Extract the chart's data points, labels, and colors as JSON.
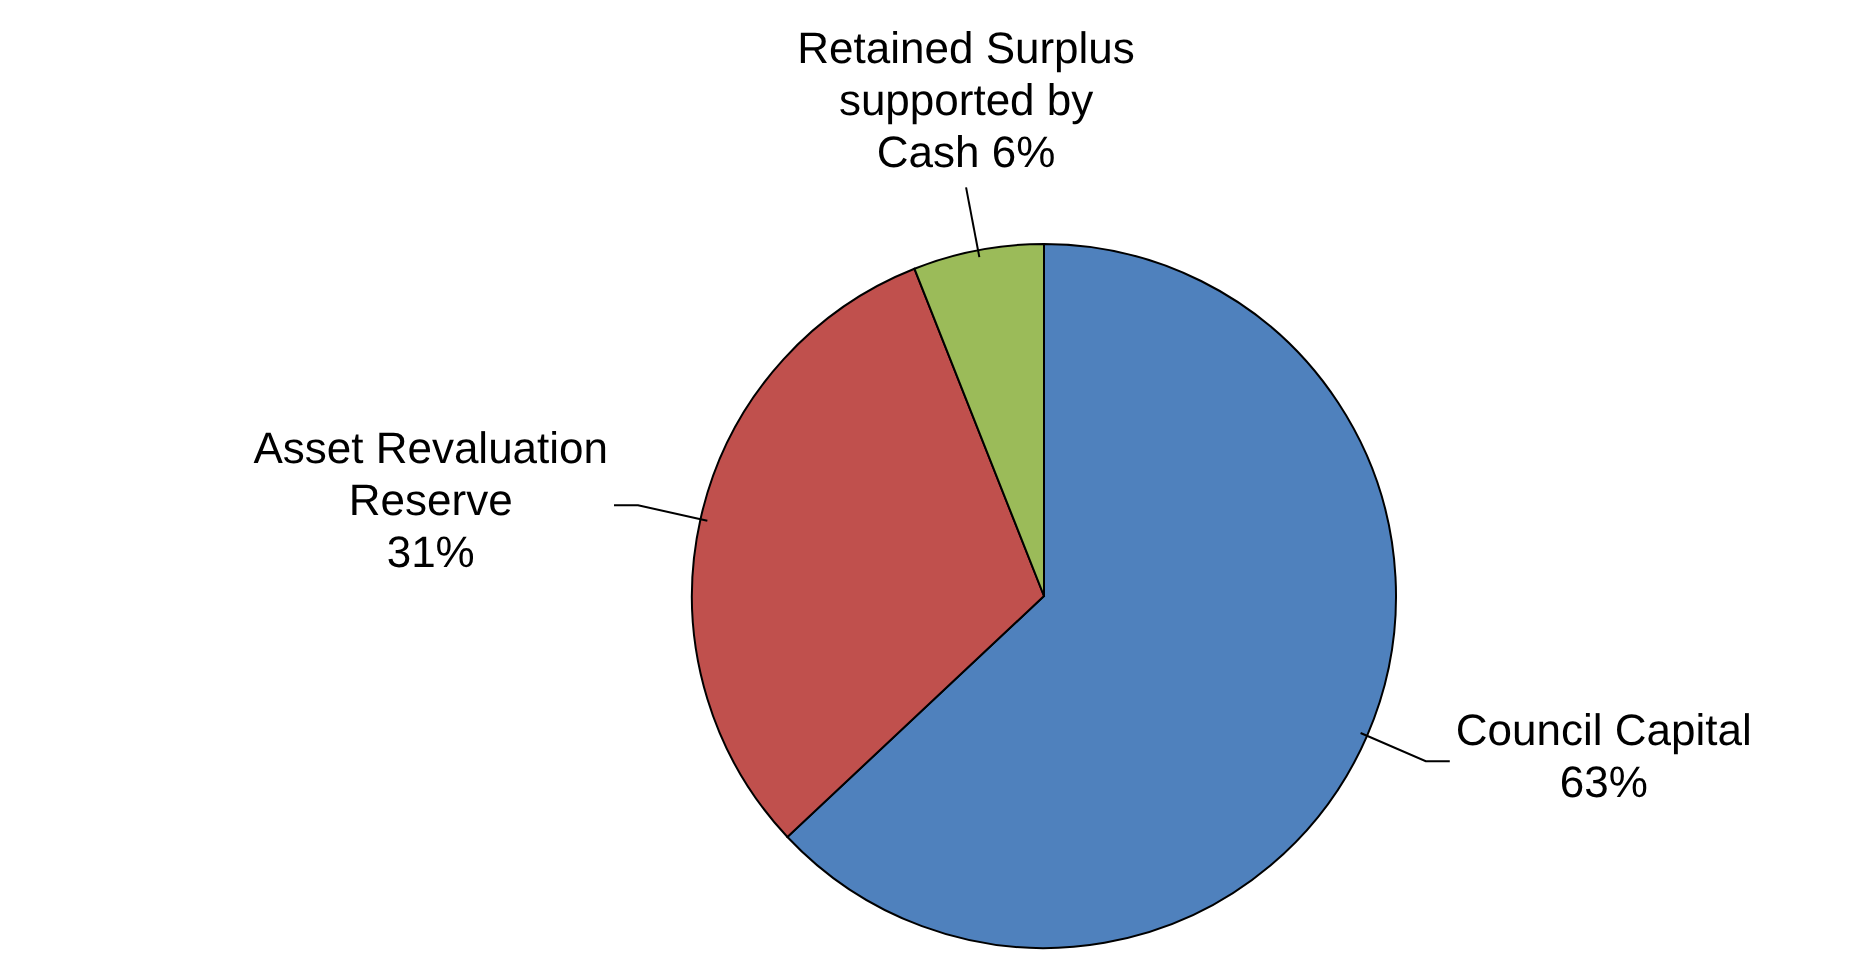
{
  "chart_data": {
    "type": "pie",
    "categories": [
      "Council Capital",
      "Asset Revaluation Reserve",
      "Retained Surplus supported by Cash"
    ],
    "values": [
      63,
      31,
      6
    ],
    "colors": [
      "#4f81bd",
      "#c0504d",
      "#9bbb59"
    ],
    "value_labels": [
      "63%",
      "31%",
      "6%"
    ]
  }
}
